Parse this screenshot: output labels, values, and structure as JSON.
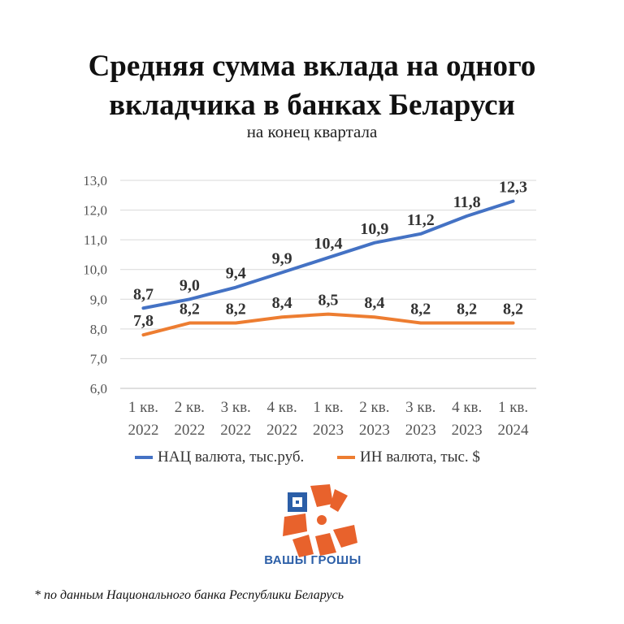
{
  "header": {
    "title_line1": "Средняя сумма вклада на одного",
    "title_line2": "вкладчика в банках Беларуси",
    "subtitle": "на конец квартала"
  },
  "chart_data": {
    "type": "line",
    "categories": [
      [
        "1 кв.",
        "2022"
      ],
      [
        "2 кв.",
        "2022"
      ],
      [
        "3 кв.",
        "2022"
      ],
      [
        "4 кв.",
        "2022"
      ],
      [
        "1 кв.",
        "2023"
      ],
      [
        "2 кв.",
        "2023"
      ],
      [
        "3 кв.",
        "2023"
      ],
      [
        "4 кв.",
        "2023"
      ],
      [
        "1 кв.",
        "2024"
      ]
    ],
    "series": [
      {
        "name": "НАЦ валюта, тыс.руб.",
        "color": "#4472C4",
        "values": [
          8.7,
          9.0,
          9.4,
          9.9,
          10.4,
          10.9,
          11.2,
          11.8,
          12.3
        ],
        "labels": [
          "8,7",
          "9,0",
          "9,4",
          "9,9",
          "10,4",
          "10,9",
          "11,2",
          "11,8",
          "12,3"
        ]
      },
      {
        "name": "ИН валюта, тыс. $",
        "color": "#ED7D31",
        "values": [
          7.8,
          8.2,
          8.2,
          8.4,
          8.5,
          8.4,
          8.2,
          8.2,
          8.2
        ],
        "labels": [
          "7,8",
          "8,2",
          "8,2",
          "8,4",
          "8,5",
          "8,4",
          "8,2",
          "8,2",
          "8,2"
        ]
      }
    ],
    "ylim": [
      6.0,
      13.0
    ],
    "yticks": [
      "6,0",
      "7,0",
      "8,0",
      "9,0",
      "10,0",
      "11,0",
      "12,0",
      "13,0"
    ],
    "grid": true,
    "legend_position": "bottom"
  },
  "logo": {
    "text": "ВАШЫ ГРОШЫ",
    "colors": {
      "orange": "#E8622C",
      "blue": "#2B5EA7"
    }
  },
  "footnote": "* по данным Национального банка Республики Беларусь"
}
